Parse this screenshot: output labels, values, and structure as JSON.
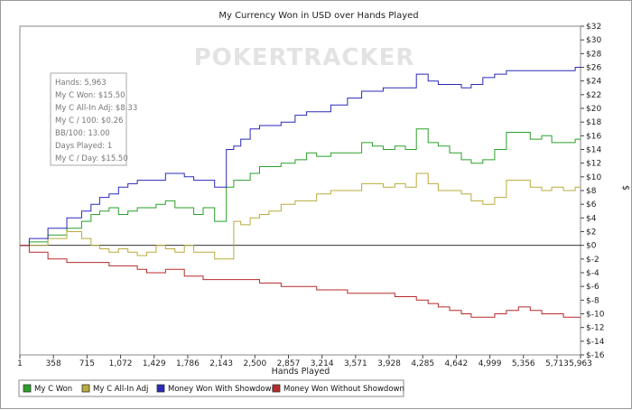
{
  "watermark": "POKERTRACKER",
  "info_box": {
    "lines": [
      "Hands: 5,963",
      "My C Won: $15.50",
      "My C All-In Adj: $8.33",
      "My C / 100: $0.26",
      "BB/100: 13.00",
      "Days Played: 1",
      "My C / Day: $15.50"
    ]
  },
  "chart_data": {
    "type": "line",
    "title": "My Currency Won in USD over Hands Played",
    "xlabel": "Hands Played",
    "ylabel": "$",
    "xlim": [
      1,
      5963
    ],
    "ylim": [
      -16,
      32
    ],
    "x_ticks": [
      1,
      358,
      715,
      1072,
      1429,
      1786,
      2143,
      2500,
      2857,
      3214,
      3571,
      3928,
      4285,
      4642,
      4999,
      5356,
      5713,
      5963
    ],
    "x_tick_labels": [
      "1",
      "358",
      "715",
      "1,072",
      "1,429",
      "1,786",
      "2,143",
      "2,500",
      "2,857",
      "3,214",
      "3,571",
      "3,928",
      "4,285",
      "4,642",
      "4,999",
      "5,356",
      "5,713",
      "5,963"
    ],
    "y_ticks": [
      32,
      30,
      28,
      26,
      24,
      22,
      20,
      18,
      16,
      14,
      12,
      10,
      8,
      6,
      4,
      2,
      0,
      -2,
      -4,
      -6,
      -8,
      -10,
      -12,
      -14,
      -16
    ],
    "y_tick_labels": [
      "$32",
      "$30",
      "$28",
      "$26",
      "$24",
      "$22",
      "$20",
      "$18",
      "$16",
      "$14",
      "$12",
      "$10",
      "$8",
      "$6",
      "$4",
      "$2",
      "$0",
      "$-2",
      "$-4",
      "$-6",
      "$-8",
      "$-10",
      "$-12",
      "$-14",
      "$-16"
    ],
    "y_axis_position": "right",
    "grid": false,
    "legend_position": "bottom",
    "series": [
      {
        "name": "My C Won",
        "color": "#2aa02a",
        "x": [
          1,
          200,
          400,
          600,
          715,
          800,
          900,
          1000,
          1100,
          1200,
          1300,
          1400,
          1500,
          1600,
          1700,
          1800,
          1900,
          2000,
          2143,
          2250,
          2300,
          2400,
          2500,
          2600,
          2700,
          2857,
          3000,
          3100,
          3214,
          3400,
          3571,
          3700,
          3800,
          3928,
          4050,
          4150,
          4285,
          4400,
          4500,
          4642,
          4750,
          4850,
          4999,
          5100,
          5250,
          5356,
          5500,
          5600,
          5713,
          5850,
          5963
        ],
        "y": [
          0,
          0.5,
          1.5,
          2.5,
          3.5,
          4.5,
          5,
          5.5,
          4.5,
          5,
          5.5,
          5.5,
          6,
          6.5,
          5.5,
          5.5,
          4.5,
          5.5,
          3.5,
          8.5,
          9.5,
          9.5,
          10.5,
          11.5,
          11.5,
          12,
          12.5,
          13.5,
          13,
          13.5,
          13.5,
          15,
          14.5,
          14,
          14.5,
          14,
          17,
          15,
          14.5,
          13.5,
          12.5,
          12,
          12.5,
          14,
          16.5,
          16.5,
          15.5,
          16,
          15,
          15,
          15.5
        ]
      },
      {
        "name": "My C All-In Adj",
        "color": "#b8ac3c",
        "x": [
          1,
          200,
          400,
          600,
          715,
          800,
          900,
          1000,
          1100,
          1200,
          1300,
          1400,
          1500,
          1600,
          1700,
          1800,
          1900,
          2000,
          2143,
          2200,
          2250,
          2300,
          2400,
          2500,
          2600,
          2700,
          2857,
          3000,
          3100,
          3214,
          3400,
          3571,
          3700,
          3800,
          3928,
          4050,
          4150,
          4285,
          4400,
          4500,
          4642,
          4750,
          4850,
          4999,
          5100,
          5250,
          5356,
          5500,
          5600,
          5713,
          5850,
          5963
        ],
        "y": [
          0,
          0,
          1,
          2,
          1,
          0,
          -0.5,
          -1,
          -0.5,
          -1,
          -1.5,
          -1,
          0,
          -0.5,
          -1,
          0,
          -1,
          -1,
          -2,
          -2,
          -2,
          3.5,
          3,
          4,
          4.5,
          5,
          6,
          6.5,
          6.5,
          7.5,
          8,
          8,
          9,
          9,
          8.5,
          9,
          8.5,
          10.5,
          9,
          8,
          8,
          7.5,
          6.5,
          6,
          7,
          9.5,
          9.5,
          8.5,
          8,
          8.5,
          8,
          8.5
        ]
      },
      {
        "name": "Money Won With Showdown",
        "color": "#2a2ab8",
        "x": [
          1,
          200,
          400,
          600,
          715,
          800,
          900,
          1000,
          1100,
          1200,
          1300,
          1400,
          1500,
          1600,
          1700,
          1800,
          1900,
          2000,
          2143,
          2250,
          2300,
          2400,
          2500,
          2600,
          2700,
          2857,
          3000,
          3100,
          3214,
          3400,
          3571,
          3700,
          3800,
          3928,
          4050,
          4150,
          4285,
          4400,
          4500,
          4642,
          4750,
          4850,
          4999,
          5100,
          5250,
          5356,
          5500,
          5600,
          5713,
          5850,
          5963
        ],
        "y": [
          0,
          1,
          2.5,
          4,
          5,
          6,
          7,
          7.5,
          8.5,
          9,
          9.5,
          9.5,
          9.5,
          10.5,
          10.5,
          10,
          9.5,
          9.5,
          8.5,
          14,
          14.5,
          15.5,
          17,
          17.5,
          17.5,
          18,
          19,
          19.5,
          19.5,
          20.5,
          21.5,
          22.5,
          22.5,
          23,
          23,
          23,
          25,
          24,
          23.5,
          23.5,
          23,
          23.5,
          24.5,
          25,
          25.5,
          25.5,
          25.5,
          25.5,
          25.5,
          25.5,
          26
        ]
      },
      {
        "name": "Money Won Without Showdown",
        "color": "#b82a2a",
        "x": [
          1,
          200,
          400,
          600,
          715,
          800,
          900,
          1000,
          1100,
          1200,
          1300,
          1400,
          1500,
          1600,
          1700,
          1800,
          1900,
          2000,
          2143,
          2250,
          2300,
          2400,
          2500,
          2600,
          2700,
          2857,
          3000,
          3100,
          3214,
          3400,
          3571,
          3700,
          3800,
          3928,
          4050,
          4150,
          4285,
          4400,
          4500,
          4642,
          4750,
          4850,
          4999,
          5100,
          5250,
          5356,
          5500,
          5600,
          5713,
          5850,
          5963
        ],
        "y": [
          0,
          -1,
          -2,
          -2.5,
          -2.5,
          -2.5,
          -2.5,
          -3,
          -3,
          -3,
          -3.5,
          -4,
          -4,
          -3.5,
          -3.5,
          -4.5,
          -4.5,
          -5,
          -5,
          -5,
          -5,
          -5,
          -5,
          -5.5,
          -5.5,
          -6,
          -6,
          -6,
          -6.5,
          -6.5,
          -7,
          -7,
          -7,
          -7,
          -7.5,
          -7.5,
          -8,
          -8.5,
          -9,
          -9.5,
          -10,
          -10.5,
          -10.5,
          -10,
          -9.5,
          -9,
          -9.5,
          -10,
          -10,
          -10.5,
          -10.5
        ]
      }
    ]
  }
}
